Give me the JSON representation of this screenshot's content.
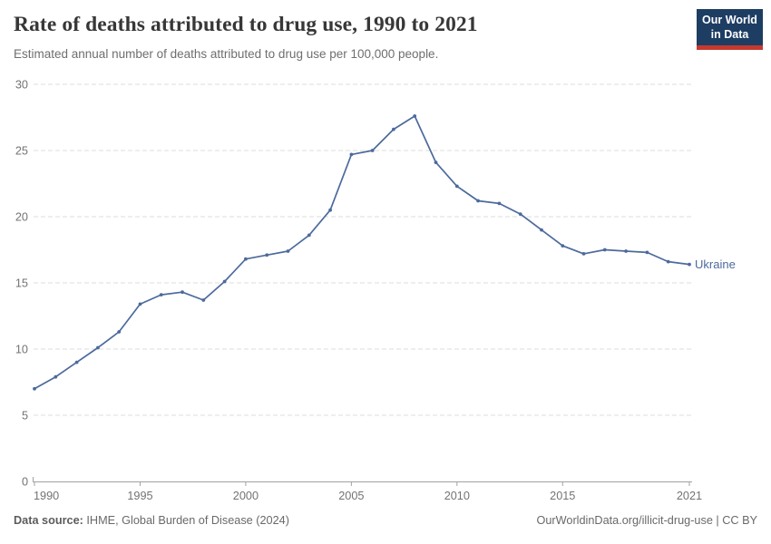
{
  "header": {
    "title": "Rate of deaths attributed to drug use, 1990 to 2021",
    "subtitle": "Estimated annual number of deaths attributed to drug use per 100,000 people.",
    "logo": {
      "line1": "Our World",
      "line2": "in Data",
      "bg_color": "#1d3d63",
      "bar_color": "#c5392f"
    }
  },
  "chart_data": {
    "type": "line",
    "title": "Rate of deaths attributed to drug use, 1990 to 2021",
    "xlabel": "",
    "ylabel": "",
    "xlim": [
      1990,
      2021
    ],
    "ylim": [
      0,
      30
    ],
    "x_ticks": [
      1990,
      1995,
      2000,
      2005,
      2010,
      2015,
      2021
    ],
    "y_ticks": [
      0,
      5,
      10,
      15,
      20,
      25,
      30
    ],
    "grid": "horizontal-dashed",
    "legend_position": "end-of-line",
    "grid_color": "#dcdcdc",
    "axis_color": "#a1a1a1",
    "tick_label_color": "#737373",
    "series": [
      {
        "name": "Ukraine",
        "color": "#4C6A9C",
        "x": [
          1990,
          1991,
          1992,
          1993,
          1994,
          1995,
          1996,
          1997,
          1998,
          1999,
          2000,
          2001,
          2002,
          2003,
          2004,
          2005,
          2006,
          2007,
          2008,
          2009,
          2010,
          2011,
          2012,
          2013,
          2014,
          2015,
          2016,
          2017,
          2018,
          2019,
          2020,
          2021
        ],
        "values": [
          7.0,
          7.9,
          9.0,
          10.1,
          11.3,
          13.4,
          14.1,
          14.3,
          13.7,
          15.1,
          16.8,
          17.1,
          17.4,
          18.6,
          20.5,
          24.7,
          25.0,
          26.6,
          27.6,
          24.1,
          22.3,
          21.2,
          21.0,
          20.2,
          19.0,
          17.8,
          17.2,
          17.5,
          17.4,
          17.3,
          16.6,
          16.4
        ]
      }
    ]
  },
  "footer": {
    "source_label": "Data source:",
    "source_text": " IHME, Global Burden of Disease (2024)",
    "attribution": "OurWorldinData.org/illicit-drug-use | CC BY"
  }
}
